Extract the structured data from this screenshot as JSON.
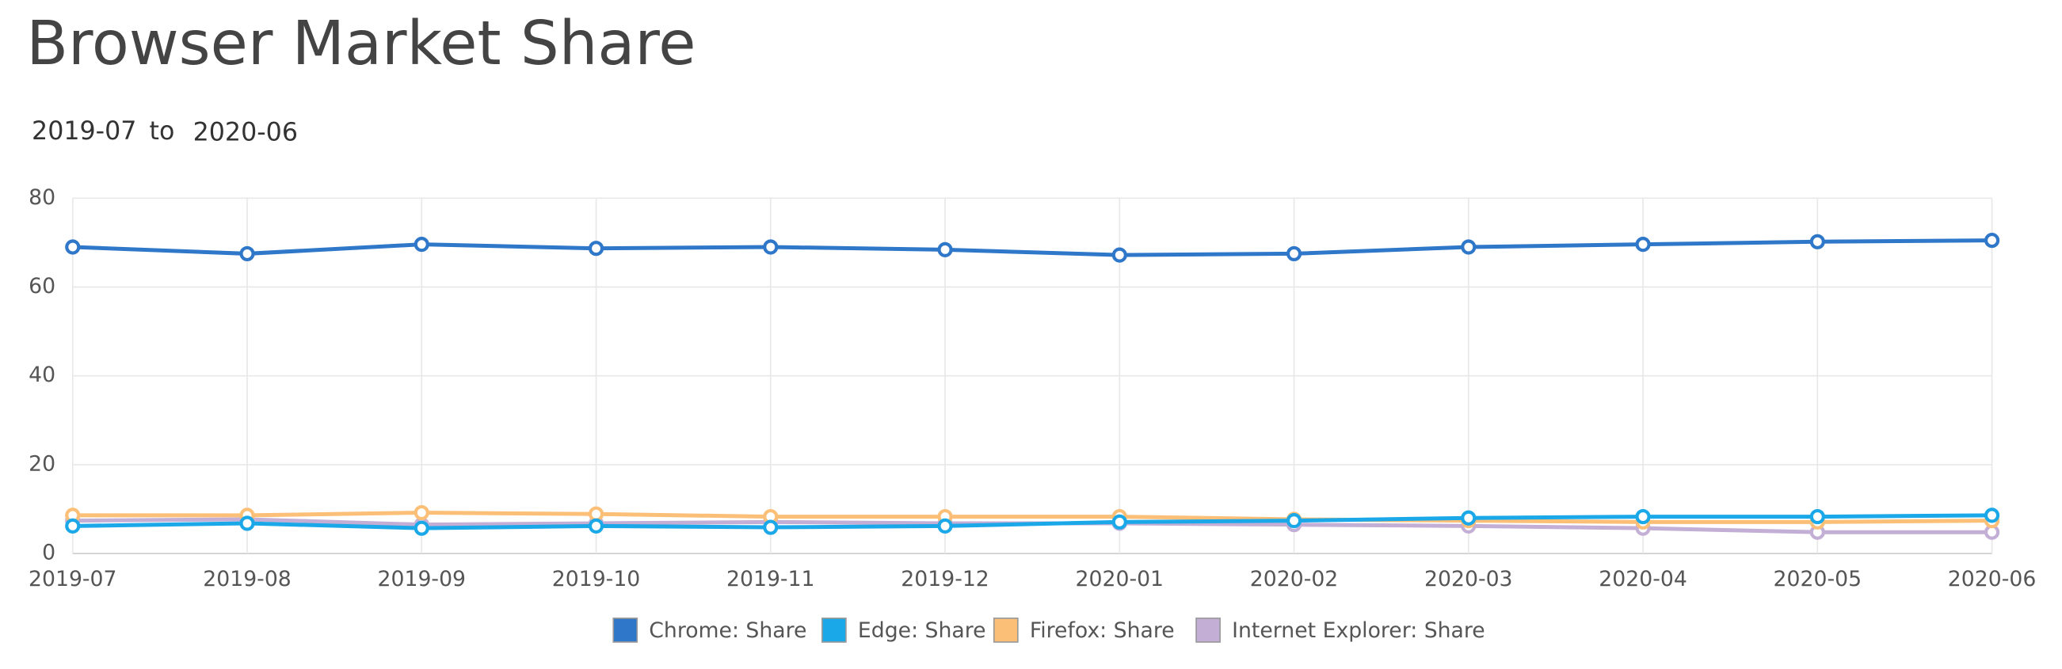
{
  "chart_data": {
    "type": "line",
    "title": "Browser Market Share",
    "date_range": {
      "from": "2019-07",
      "separator": "to",
      "to": "2020-06"
    },
    "x": [
      "2019-07",
      "2019-08",
      "2019-09",
      "2019-10",
      "2019-11",
      "2019-12",
      "2020-01",
      "2020-02",
      "2020-03",
      "2020-04",
      "2020-05",
      "2020-06"
    ],
    "ylim": [
      0,
      80
    ],
    "yticks": [
      0,
      20,
      40,
      60,
      80
    ],
    "grid": true,
    "series": [
      {
        "name": "Chrome: Share",
        "color": "#2f77c8",
        "values": [
          69.0,
          67.5,
          69.6,
          68.7,
          69.0,
          68.4,
          67.2,
          67.5,
          69.0,
          69.6,
          70.2,
          70.5
        ]
      },
      {
        "name": "Edge: Share",
        "color": "#1ba8e8",
        "values": [
          6.2,
          6.8,
          5.7,
          6.2,
          5.9,
          6.2,
          7.1,
          7.4,
          8.0,
          8.3,
          8.3,
          8.6
        ]
      },
      {
        "name": "Firefox: Share",
        "color": "#fbbf77",
        "values": [
          8.6,
          8.6,
          9.2,
          8.9,
          8.3,
          8.3,
          8.3,
          7.7,
          7.4,
          7.1,
          7.1,
          7.4
        ]
      },
      {
        "name": "Internet Explorer: Share",
        "color": "#c3aed6",
        "values": [
          7.4,
          7.7,
          6.5,
          6.8,
          7.1,
          6.8,
          6.8,
          6.5,
          6.2,
          5.7,
          4.8,
          4.8
        ]
      }
    ]
  }
}
